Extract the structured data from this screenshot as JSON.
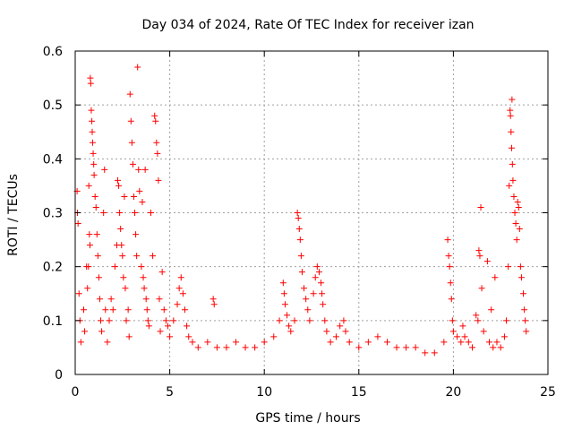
{
  "chart_data": {
    "type": "scatter",
    "title": "Day 034 of 2024, Rate Of TEC Index for receiver izan",
    "xlabel": "GPS time / hours",
    "ylabel": "ROTI / TECUs",
    "xlim": [
      0,
      25
    ],
    "ylim": [
      0,
      0.6
    ],
    "x_ticks": [
      0,
      5,
      10,
      15,
      20,
      25
    ],
    "x_tick_labels": [
      "0",
      "5",
      "10",
      "15",
      "20",
      "25"
    ],
    "y_ticks": [
      0,
      0.1,
      0.2,
      0.3,
      0.4,
      0.5,
      0.6
    ],
    "y_tick_labels": [
      "0",
      "0.1",
      "0.2",
      "0.3",
      "0.4",
      "0.5",
      "0.6"
    ],
    "grid": true,
    "marker": "+",
    "series_color": "#ff0000",
    "series": [
      {
        "name": "ROTI",
        "points": [
          [
            0.1,
            0.34
          ],
          [
            0.12,
            0.3
          ],
          [
            0.15,
            0.28
          ],
          [
            0.2,
            0.15
          ],
          [
            0.25,
            0.1
          ],
          [
            0.3,
            0.06
          ],
          [
            0.45,
            0.12
          ],
          [
            0.5,
            0.08
          ],
          [
            0.6,
            0.2
          ],
          [
            0.65,
            0.16
          ],
          [
            0.7,
            0.2
          ],
          [
            0.72,
            0.35
          ],
          [
            0.75,
            0.26
          ],
          [
            0.78,
            0.24
          ],
          [
            0.8,
            0.55
          ],
          [
            0.82,
            0.54
          ],
          [
            0.85,
            0.49
          ],
          [
            0.88,
            0.47
          ],
          [
            0.9,
            0.45
          ],
          [
            0.92,
            0.43
          ],
          [
            0.95,
            0.41
          ],
          [
            0.98,
            0.39
          ],
          [
            1.0,
            0.37
          ],
          [
            1.05,
            0.33
          ],
          [
            1.1,
            0.31
          ],
          [
            1.15,
            0.26
          ],
          [
            1.2,
            0.22
          ],
          [
            1.25,
            0.18
          ],
          [
            1.3,
            0.14
          ],
          [
            1.35,
            0.1
          ],
          [
            1.4,
            0.08
          ],
          [
            1.5,
            0.3
          ],
          [
            1.55,
            0.38
          ],
          [
            1.6,
            0.12
          ],
          [
            1.7,
            0.06
          ],
          [
            1.8,
            0.1
          ],
          [
            1.9,
            0.14
          ],
          [
            2.0,
            0.12
          ],
          [
            2.1,
            0.2
          ],
          [
            2.2,
            0.24
          ],
          [
            2.25,
            0.36
          ],
          [
            2.3,
            0.35
          ],
          [
            2.35,
            0.3
          ],
          [
            2.4,
            0.27
          ],
          [
            2.45,
            0.24
          ],
          [
            2.5,
            0.22
          ],
          [
            2.55,
            0.18
          ],
          [
            2.6,
            0.33
          ],
          [
            2.65,
            0.16
          ],
          [
            2.7,
            0.1
          ],
          [
            2.8,
            0.12
          ],
          [
            2.85,
            0.07
          ],
          [
            2.9,
            0.52
          ],
          [
            2.95,
            0.47
          ],
          [
            3.0,
            0.43
          ],
          [
            3.05,
            0.39
          ],
          [
            3.1,
            0.33
          ],
          [
            3.15,
            0.3
          ],
          [
            3.2,
            0.26
          ],
          [
            3.25,
            0.22
          ],
          [
            3.3,
            0.57
          ],
          [
            3.35,
            0.38
          ],
          [
            3.4,
            0.34
          ],
          [
            3.5,
            0.2
          ],
          [
            3.55,
            0.32
          ],
          [
            3.6,
            0.18
          ],
          [
            3.65,
            0.16
          ],
          [
            3.7,
            0.38
          ],
          [
            3.75,
            0.14
          ],
          [
            3.8,
            0.12
          ],
          [
            3.85,
            0.1
          ],
          [
            3.9,
            0.09
          ],
          [
            4.0,
            0.3
          ],
          [
            4.1,
            0.22
          ],
          [
            4.2,
            0.48
          ],
          [
            4.25,
            0.47
          ],
          [
            4.3,
            0.43
          ],
          [
            4.35,
            0.41
          ],
          [
            4.4,
            0.36
          ],
          [
            4.45,
            0.14
          ],
          [
            4.5,
            0.08
          ],
          [
            4.6,
            0.19
          ],
          [
            4.7,
            0.12
          ],
          [
            4.8,
            0.1
          ],
          [
            4.9,
            0.09
          ],
          [
            5.0,
            0.07
          ],
          [
            5.2,
            0.1
          ],
          [
            5.4,
            0.13
          ],
          [
            5.5,
            0.16
          ],
          [
            5.6,
            0.18
          ],
          [
            5.7,
            0.15
          ],
          [
            5.8,
            0.12
          ],
          [
            5.9,
            0.09
          ],
          [
            6.0,
            0.07
          ],
          [
            6.2,
            0.06
          ],
          [
            6.5,
            0.05
          ],
          [
            7.0,
            0.06
          ],
          [
            7.3,
            0.14
          ],
          [
            7.35,
            0.13
          ],
          [
            7.5,
            0.05
          ],
          [
            8.0,
            0.05
          ],
          [
            8.5,
            0.06
          ],
          [
            9.0,
            0.05
          ],
          [
            9.5,
            0.05
          ],
          [
            10.0,
            0.06
          ],
          [
            10.5,
            0.07
          ],
          [
            10.8,
            0.1
          ],
          [
            11.0,
            0.17
          ],
          [
            11.05,
            0.15
          ],
          [
            11.1,
            0.13
          ],
          [
            11.2,
            0.11
          ],
          [
            11.3,
            0.09
          ],
          [
            11.4,
            0.08
          ],
          [
            11.6,
            0.1
          ],
          [
            11.75,
            0.3
          ],
          [
            11.8,
            0.29
          ],
          [
            11.85,
            0.27
          ],
          [
            11.9,
            0.25
          ],
          [
            11.95,
            0.22
          ],
          [
            12.0,
            0.19
          ],
          [
            12.1,
            0.16
          ],
          [
            12.2,
            0.14
          ],
          [
            12.3,
            0.12
          ],
          [
            12.4,
            0.1
          ],
          [
            12.6,
            0.15
          ],
          [
            12.7,
            0.18
          ],
          [
            12.8,
            0.2
          ],
          [
            12.9,
            0.19
          ],
          [
            13.0,
            0.17
          ],
          [
            13.05,
            0.15
          ],
          [
            13.1,
            0.13
          ],
          [
            13.2,
            0.1
          ],
          [
            13.3,
            0.08
          ],
          [
            13.5,
            0.06
          ],
          [
            13.8,
            0.07
          ],
          [
            14.0,
            0.09
          ],
          [
            14.2,
            0.1
          ],
          [
            14.3,
            0.08
          ],
          [
            14.5,
            0.06
          ],
          [
            15.0,
            0.05
          ],
          [
            15.5,
            0.06
          ],
          [
            16.0,
            0.07
          ],
          [
            16.5,
            0.06
          ],
          [
            17.0,
            0.05
          ],
          [
            17.5,
            0.05
          ],
          [
            18.0,
            0.05
          ],
          [
            18.5,
            0.04
          ],
          [
            19.0,
            0.04
          ],
          [
            19.5,
            0.06
          ],
          [
            19.7,
            0.25
          ],
          [
            19.75,
            0.22
          ],
          [
            19.8,
            0.2
          ],
          [
            19.85,
            0.17
          ],
          [
            19.9,
            0.14
          ],
          [
            19.95,
            0.1
          ],
          [
            20.0,
            0.08
          ],
          [
            20.2,
            0.07
          ],
          [
            20.4,
            0.06
          ],
          [
            20.5,
            0.09
          ],
          [
            20.6,
            0.07
          ],
          [
            20.8,
            0.06
          ],
          [
            21.0,
            0.05
          ],
          [
            21.2,
            0.11
          ],
          [
            21.3,
            0.1
          ],
          [
            21.35,
            0.23
          ],
          [
            21.4,
            0.22
          ],
          [
            21.45,
            0.31
          ],
          [
            21.5,
            0.16
          ],
          [
            21.6,
            0.08
          ],
          [
            21.8,
            0.21
          ],
          [
            21.9,
            0.06
          ],
          [
            22.0,
            0.12
          ],
          [
            22.1,
            0.05
          ],
          [
            22.2,
            0.18
          ],
          [
            22.3,
            0.06
          ],
          [
            22.5,
            0.05
          ],
          [
            22.7,
            0.07
          ],
          [
            22.8,
            0.1
          ],
          [
            22.9,
            0.2
          ],
          [
            22.95,
            0.35
          ],
          [
            23.0,
            0.49
          ],
          [
            23.02,
            0.48
          ],
          [
            23.05,
            0.45
          ],
          [
            23.08,
            0.42
          ],
          [
            23.1,
            0.51
          ],
          [
            23.12,
            0.39
          ],
          [
            23.15,
            0.36
          ],
          [
            23.2,
            0.33
          ],
          [
            23.25,
            0.3
          ],
          [
            23.3,
            0.28
          ],
          [
            23.35,
            0.25
          ],
          [
            23.4,
            0.32
          ],
          [
            23.45,
            0.31
          ],
          [
            23.5,
            0.27
          ],
          [
            23.55,
            0.2
          ],
          [
            23.6,
            0.18
          ],
          [
            23.7,
            0.15
          ],
          [
            23.75,
            0.12
          ],
          [
            23.8,
            0.1
          ],
          [
            23.85,
            0.08
          ]
        ]
      }
    ]
  }
}
